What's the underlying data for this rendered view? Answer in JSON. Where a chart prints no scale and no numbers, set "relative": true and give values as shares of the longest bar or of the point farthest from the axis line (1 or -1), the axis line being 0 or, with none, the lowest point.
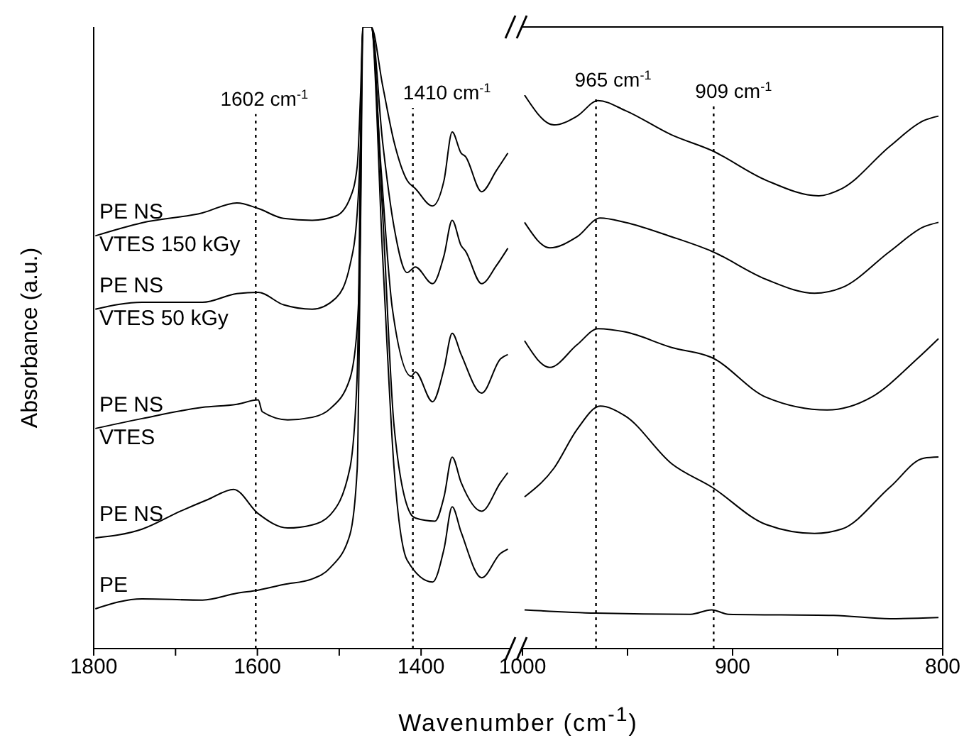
{
  "chart_data": [
    {
      "type": "line",
      "relative": true,
      "ylabel": "Absorbance (a.u.)",
      "xlabel": "Wavenumber (cm$^{-1}$)",
      "xlim": [
        1800,
        1290
      ],
      "xticks": [
        1800,
        {
          "value": 1700,
          "label": null
        },
        1600,
        {
          "value": 1500,
          "label": null
        },
        1400
      ],
      "tick_labels": "x",
      "marker": "none",
      "line_style": "solid",
      "ref_lines": [
        {
          "axis": "x",
          "value": 1602,
          "label": "1602 cm$^{-1}$",
          "line_style": "dotted",
          "color": "#000000"
        },
        {
          "axis": "x",
          "value": 1410,
          "label": "1410 cm$^{-1}$",
          "line_style": "dotted",
          "color": "#000000"
        }
      ],
      "series": [
        {
          "name": "PE NS\nVTES 150 kGy",
          "color": "#000000",
          "x": [
            1798,
            1741,
            1667,
            1625,
            1599,
            1568,
            1533,
            1504,
            1487,
            1478,
            1474,
            1471,
            1461,
            1447,
            1433,
            1417,
            1407,
            1386,
            1372,
            1362,
            1351,
            1346,
            1326,
            1308,
            1294
          ],
          "values": [
            0.664,
            0.685,
            0.701,
            0.717,
            0.708,
            0.692,
            0.689,
            0.696,
            0.724,
            0.776,
            0.89,
            1,
            1,
            0.906,
            0.815,
            0.753,
            0.74,
            0.712,
            0.753,
            0.831,
            0.797,
            0.792,
            0.735,
            0.769,
            0.797
          ]
        },
        {
          "name": "PE NS\nVTES 50 kGy",
          "color": "#000000",
          "x": [
            1798,
            1741,
            1667,
            1625,
            1599,
            1568,
            1533,
            1504,
            1487,
            1478,
            1474,
            1471,
            1461,
            1447,
            1433,
            1417,
            1407,
            1386,
            1372,
            1362,
            1351,
            1346,
            1326,
            1308,
            1294
          ],
          "values": [
            0.546,
            0.557,
            0.557,
            0.571,
            0.573,
            0.553,
            0.546,
            0.564,
            0.616,
            0.701,
            0.815,
            1,
            1,
            0.815,
            0.678,
            0.605,
            0.614,
            0.587,
            0.632,
            0.689,
            0.648,
            0.64,
            0.587,
            0.616,
            0.644
          ]
        },
        {
          "name": "PE NS\nVTES",
          "color": "#000000",
          "x": [
            1798,
            1741,
            1667,
            1625,
            1599,
            1594,
            1563,
            1533,
            1511,
            1487,
            1478,
            1474,
            1471,
            1461,
            1449,
            1435,
            1412,
            1407,
            1386,
            1372,
            1362,
            1351,
            1326,
            1303,
            1294
          ],
          "values": [
            0.354,
            0.37,
            0.388,
            0.393,
            0.4,
            0.381,
            0.368,
            0.372,
            0.386,
            0.434,
            0.518,
            0.678,
            1,
            1,
            0.774,
            0.546,
            0.438,
            0.445,
            0.397,
            0.45,
            0.507,
            0.473,
            0.411,
            0.466,
            0.473
          ]
        },
        {
          "name": "PE NS",
          "color": "#000000",
          "x": [
            1798,
            1741,
            1694,
            1660,
            1629,
            1599,
            1563,
            1533,
            1511,
            1487,
            1478,
            1471,
            1461,
            1447,
            1433,
            1412,
            1407,
            1383,
            1372,
            1362,
            1351,
            1326,
            1303,
            1294
          ],
          "values": [
            0.178,
            0.192,
            0.221,
            0.24,
            0.256,
            0.217,
            0.194,
            0.199,
            0.215,
            0.29,
            0.443,
            1,
            1,
            0.701,
            0.358,
            0.215,
            0.21,
            0.205,
            0.244,
            0.308,
            0.267,
            0.221,
            0.267,
            0.283
          ]
        },
        {
          "name": "PE",
          "color": "#000000",
          "x": [
            1798,
            1741,
            1667,
            1625,
            1599,
            1568,
            1533,
            1511,
            1487,
            1478,
            1476,
            1471,
            1461,
            1447,
            1433,
            1417,
            1386,
            1372,
            1362,
            1351,
            1326,
            1303,
            1294
          ],
          "values": [
            0.064,
            0.08,
            0.078,
            0.089,
            0.094,
            0.103,
            0.112,
            0.13,
            0.183,
            0.29,
            0.443,
            1,
            1,
            0.632,
            0.29,
            0.142,
            0.107,
            0.16,
            0.228,
            0.187,
            0.114,
            0.153,
            0.16
          ]
        }
      ]
    },
    {
      "type": "line",
      "relative": true,
      "xlim": [
        1000,
        800
      ],
      "xticks": [
        1000,
        {
          "value": 950,
          "label": null
        },
        900,
        {
          "value": 850,
          "label": null
        },
        800
      ],
      "tick_labels": "x",
      "marker": "none",
      "line_style": "solid",
      "ref_lines": [
        {
          "axis": "x",
          "value": 965,
          "label": "965 cm$^{-1}$",
          "line_style": "dotted",
          "color": "#000000"
        },
        {
          "axis": "x",
          "value": 909,
          "label": "909 cm$^{-1}$",
          "line_style": "dotted",
          "color": "#000000"
        }
      ],
      "series": [
        {
          "color": "#000000",
          "x": [
            999,
            985,
            974,
            964,
            951,
            929,
            910,
            884,
            859,
            848,
            825,
            809,
            802
          ],
          "values": [
            1,
            0.946,
            0.962,
            0.99,
            0.972,
            0.928,
            0.9,
            0.846,
            0.818,
            0.831,
            0.908,
            0.954,
            0.962
          ]
        },
        {
          "color": "#000000",
          "x": [
            999,
            987,
            974,
            963,
            951,
            929,
            910,
            884,
            861,
            848,
            825,
            809,
            802
          ],
          "values": [
            0.77,
            0.724,
            0.744,
            0.778,
            0.77,
            0.744,
            0.718,
            0.667,
            0.642,
            0.652,
            0.718,
            0.762,
            0.77
          ]
        },
        {
          "color": "#000000",
          "x": [
            999,
            987,
            974,
            964,
            951,
            929,
            910,
            884,
            855,
            834,
            812,
            802
          ],
          "values": [
            0.556,
            0.508,
            0.549,
            0.578,
            0.572,
            0.544,
            0.526,
            0.454,
            0.431,
            0.454,
            0.524,
            0.56
          ]
        },
        {
          "color": "#000000",
          "x": [
            999,
            985,
            974,
            963,
            951,
            929,
            910,
            884,
            861,
            848,
            825,
            809,
            802
          ],
          "values": [
            0.274,
            0.326,
            0.396,
            0.438,
            0.42,
            0.334,
            0.292,
            0.224,
            0.208,
            0.216,
            0.292,
            0.344,
            0.346
          ]
        },
        {
          "color": "#000000",
          "x": [
            999,
            965,
            920,
            910,
            902,
            852,
            825,
            802
          ],
          "values": [
            0.07,
            0.064,
            0.062,
            0.07,
            0.062,
            0.06,
            0.054,
            0.056
          ]
        }
      ]
    }
  ]
}
